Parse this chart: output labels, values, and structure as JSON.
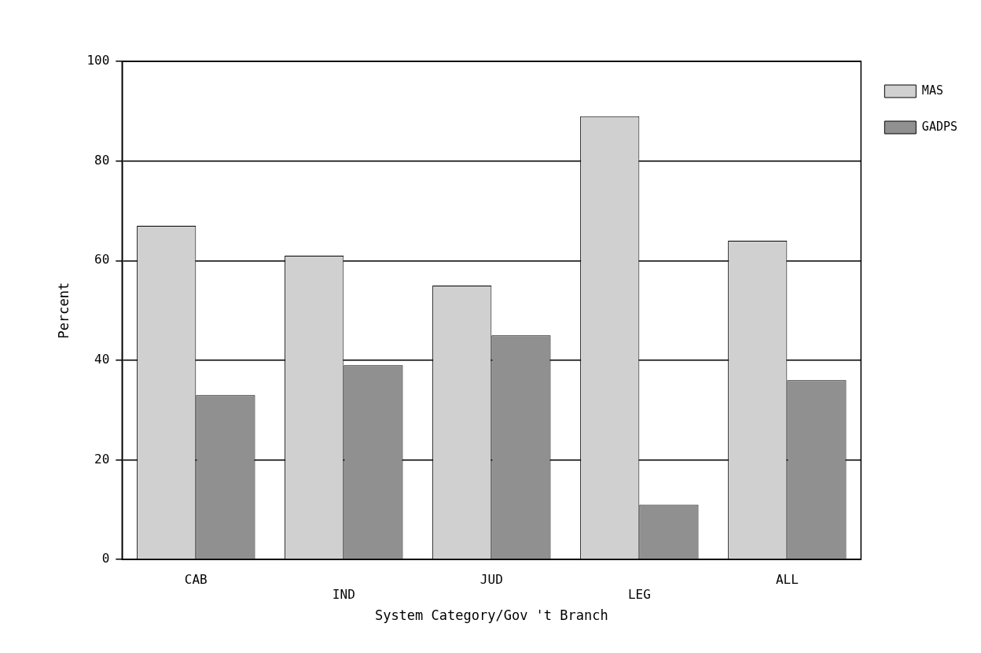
{
  "chart_data": {
    "type": "bar",
    "xlabel": "System Category/Gov 't Branch",
    "ylabel": "Percent",
    "categories": [
      "CAB",
      "IND",
      "JUD",
      "LEG",
      "ALL"
    ],
    "series": [
      {
        "name": "MAS",
        "color": "#d0d0d0",
        "values": [
          67,
          61,
          55,
          89,
          64
        ]
      },
      {
        "name": "GADPS",
        "color": "#909090",
        "values": [
          33,
          39,
          45,
          11,
          36
        ]
      }
    ],
    "ylim": [
      0,
      100
    ],
    "yticks": [
      0,
      20,
      40,
      60,
      80,
      100
    ],
    "grid": "y",
    "legend": "top right"
  }
}
